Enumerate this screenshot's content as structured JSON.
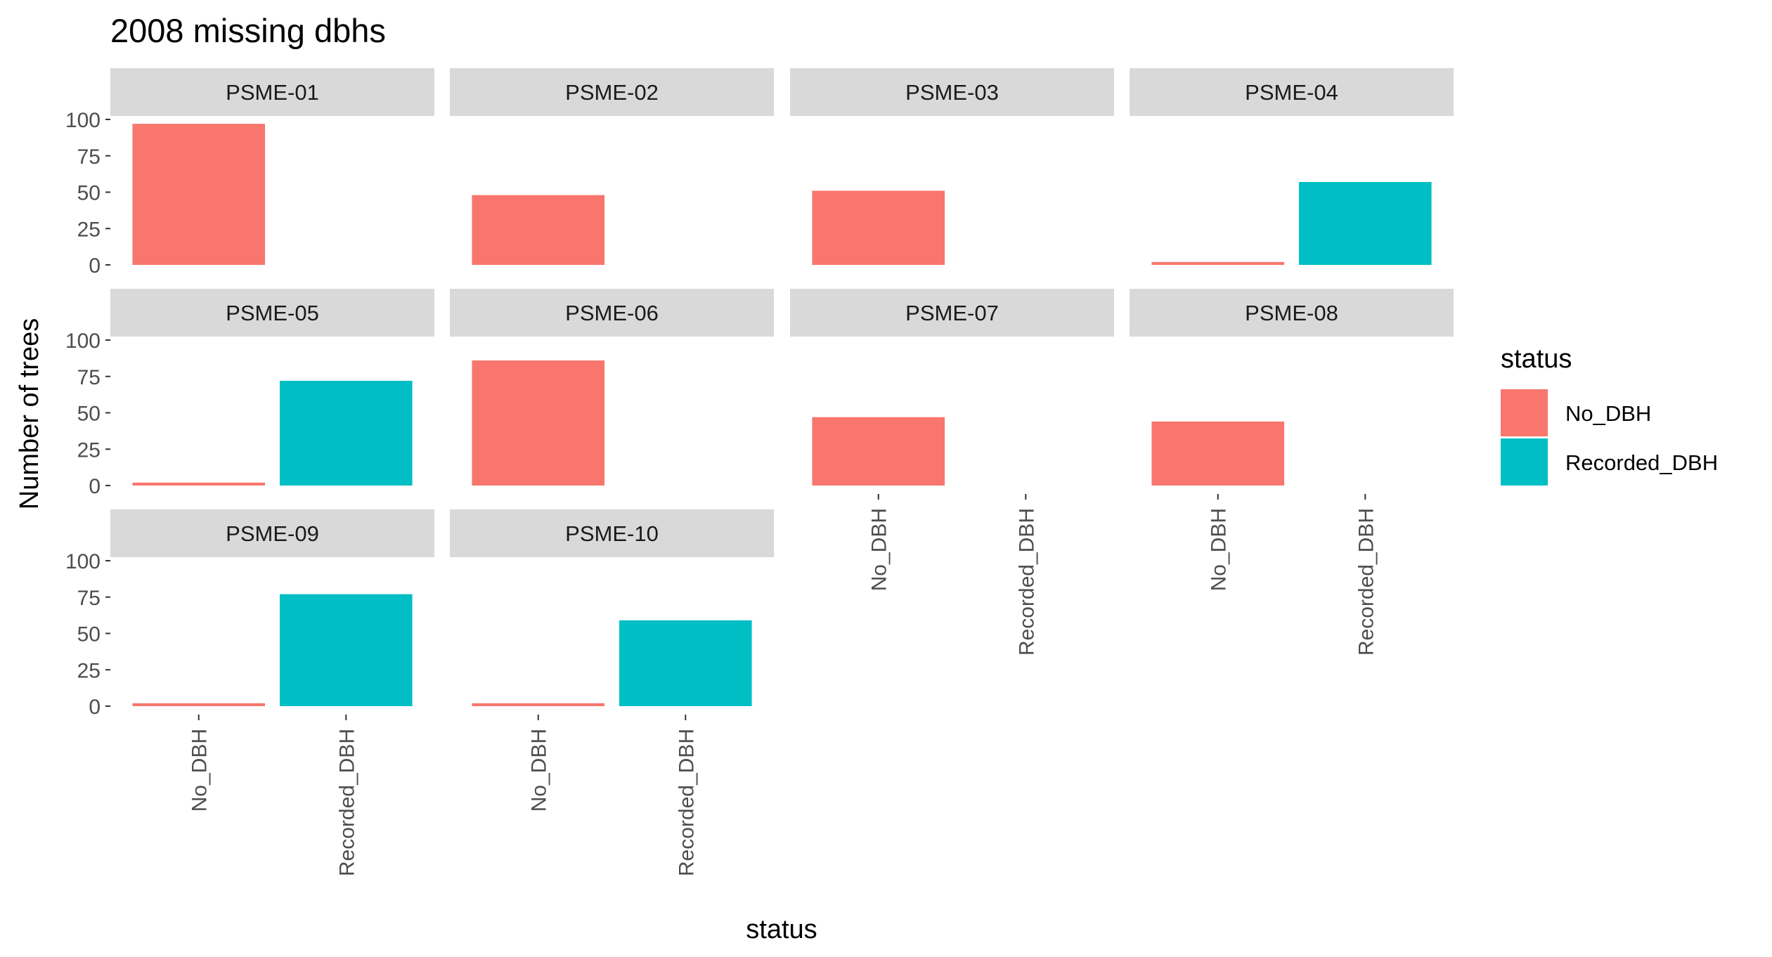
{
  "chart_data": {
    "type": "bar",
    "title": "2008 missing dbhs",
    "xlabel": "status",
    "ylabel": "Number of trees",
    "categories": [
      "No_DBH",
      "Recorded_DBH"
    ],
    "ylim": [
      0,
      100
    ],
    "yticks": [
      0,
      25,
      50,
      75,
      100
    ],
    "grid": false,
    "legend": {
      "title": "status",
      "position": "right",
      "entries": [
        {
          "label": "No_DBH",
          "color": "#F8766D"
        },
        {
          "label": "Recorded_DBH",
          "color": "#00BFC4"
        }
      ]
    },
    "facets": [
      {
        "label": "PSME-01",
        "values": [
          97,
          0
        ]
      },
      {
        "label": "PSME-02",
        "values": [
          48,
          0
        ]
      },
      {
        "label": "PSME-03",
        "values": [
          51,
          0
        ]
      },
      {
        "label": "PSME-04",
        "values": [
          2,
          57
        ]
      },
      {
        "label": "PSME-05",
        "values": [
          2,
          72
        ]
      },
      {
        "label": "PSME-06",
        "values": [
          86,
          0
        ]
      },
      {
        "label": "PSME-07",
        "values": [
          47,
          0
        ]
      },
      {
        "label": "PSME-08",
        "values": [
          44,
          0
        ]
      },
      {
        "label": "PSME-09",
        "values": [
          2,
          77
        ]
      },
      {
        "label": "PSME-10",
        "values": [
          2,
          59
        ]
      }
    ]
  },
  "colors": {
    "strip_background": "#D9D9D9",
    "tick_color": "#333333"
  }
}
